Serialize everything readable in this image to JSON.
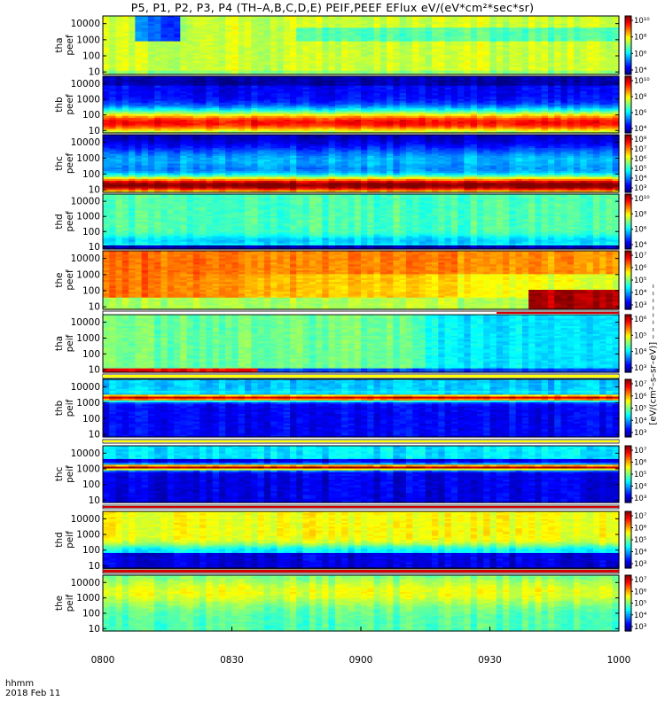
{
  "title": "P5, P1, P2, P3, P4 (TH–A,B,C,D,E) PEIF,PEEF EFlux eV/(eV*cm²*sec*sr)",
  "units_label": "[eV/(cm²–s–sr–eV)] – – – – – – – –",
  "time_axis": {
    "label": "hhmm",
    "date": "2018 Feb 11",
    "ticks": [
      "0800",
      "0830",
      "0900",
      "0930",
      "1000"
    ]
  },
  "chart_data": [
    {
      "type": "heatmap",
      "panel": "tha peef",
      "ylabel": [
        "tha",
        "peef"
      ],
      "yticks": [
        "10000",
        "1000",
        "100",
        "10"
      ],
      "ylim": [
        7,
        30000
      ],
      "y_scale": "log",
      "colorbar_ticks": [
        "10¹⁰",
        "10⁸",
        "10⁶",
        "10⁴"
      ],
      "colorbar_range": [
        1000,
        10000000000.0
      ]
    },
    {
      "type": "heatmap",
      "panel": "thb peef",
      "ylabel": [
        "thb",
        "peef"
      ],
      "yticks": [
        "10000",
        "1000",
        "100",
        "10"
      ],
      "ylim": [
        7,
        30000
      ],
      "y_scale": "log",
      "colorbar_ticks": [
        "10¹⁰",
        "10⁸",
        "10⁶",
        "10⁴"
      ],
      "colorbar_range": [
        1000,
        100000000000.0
      ]
    },
    {
      "type": "heatmap",
      "panel": "thc peef",
      "ylabel": [
        "thc",
        "peef"
      ],
      "yticks": [
        "10000",
        "1000",
        "100",
        "10"
      ],
      "ylim": [
        7,
        30000
      ],
      "y_scale": "log",
      "colorbar_ticks": [
        "10⁸",
        "10⁷",
        "10⁶",
        "10⁵",
        "10⁴",
        "10³"
      ],
      "colorbar_range": [
        1000,
        100000000.0
      ]
    },
    {
      "type": "heatmap",
      "panel": "thd peef",
      "ylabel": [
        "thd",
        "peef"
      ],
      "yticks": [
        "10000",
        "1000",
        "100",
        "10"
      ],
      "ylim": [
        7,
        30000
      ],
      "y_scale": "log",
      "colorbar_ticks": [
        "10¹⁰",
        "10⁸",
        "10⁶",
        "10⁴"
      ],
      "colorbar_range": [
        1000,
        100000000000.0
      ]
    },
    {
      "type": "heatmap",
      "panel": "the peef",
      "ylabel": [
        "the",
        "peef"
      ],
      "yticks": [
        "10000",
        "1000",
        "100",
        "10"
      ],
      "ylim": [
        7,
        30000
      ],
      "y_scale": "log",
      "colorbar_ticks": [
        "10⁷",
        "10⁶",
        "10⁵",
        "10⁴",
        "10³"
      ],
      "colorbar_range": [
        100,
        100000000.0
      ]
    },
    {
      "type": "heatmap",
      "panel": "tha peif",
      "ylabel": [
        "tha",
        "peif"
      ],
      "yticks": [
        "10000",
        "1000",
        "100",
        "10"
      ],
      "ylim": [
        7,
        30000
      ],
      "y_scale": "log",
      "colorbar_ticks": [
        "10⁶",
        "10⁵",
        "10⁴",
        "10³"
      ],
      "colorbar_range": [
        100,
        1000000.0
      ]
    },
    {
      "type": "heatmap",
      "panel": "thb peif",
      "ylabel": [
        "thb",
        "peif"
      ],
      "yticks": [
        "10000",
        "1000",
        "100",
        "10"
      ],
      "ylim": [
        7,
        30000
      ],
      "y_scale": "log",
      "colorbar_ticks": [
        "10⁷",
        "10⁶",
        "10⁵",
        "10⁴",
        "10³"
      ],
      "colorbar_range": [
        100,
        100000000.0
      ]
    },
    {
      "type": "heatmap",
      "panel": "thc peif",
      "ylabel": [
        "thc",
        "peif"
      ],
      "yticks": [
        "10000",
        "1000",
        "100",
        "10"
      ],
      "ylim": [
        7,
        30000
      ],
      "y_scale": "log",
      "colorbar_ticks": [
        "10⁷",
        "10⁶",
        "10⁵",
        "10⁴",
        "10³"
      ],
      "colorbar_range": [
        100,
        100000000.0
      ]
    },
    {
      "type": "heatmap",
      "panel": "thd peif",
      "ylabel": [
        "thd",
        "peif"
      ],
      "yticks": [
        "10000",
        "1000",
        "100",
        "10"
      ],
      "ylim": [
        7,
        30000
      ],
      "y_scale": "log",
      "colorbar_ticks": [
        "10⁷",
        "10⁶",
        "10⁵",
        "10⁴",
        "10³"
      ],
      "colorbar_range": [
        100,
        100000000.0
      ]
    },
    {
      "type": "heatmap",
      "panel": "the peif",
      "ylabel": [
        "the",
        "peif"
      ],
      "yticks": [
        "10000",
        "1000",
        "100",
        "10"
      ],
      "ylim": [
        7,
        30000
      ],
      "y_scale": "log",
      "colorbar_ticks": [
        "10⁷",
        "10⁶",
        "10⁵",
        "10⁴",
        "10³"
      ],
      "colorbar_range": [
        100,
        100000000.0
      ]
    }
  ]
}
